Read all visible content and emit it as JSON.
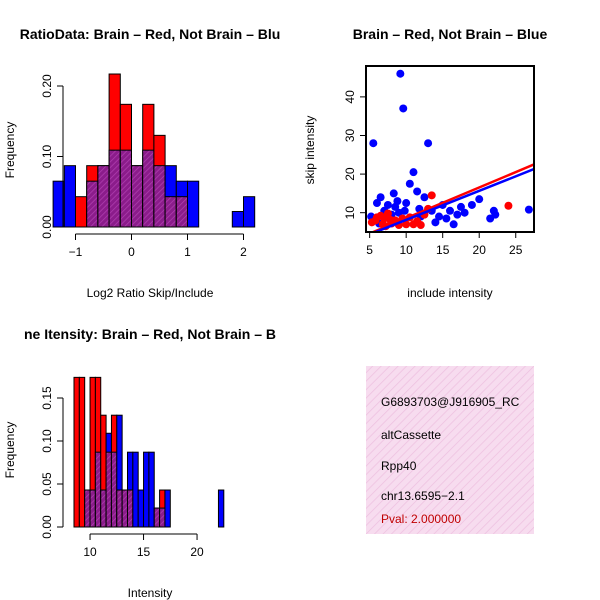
{
  "colors": {
    "red": "#ff0000",
    "blue": "#0000ff",
    "overlap": "#8b1c8b",
    "overlap_hatch": "#b03fb0",
    "info_bg": "#f7dcef",
    "info_hatch": "#eec0e0",
    "pval": "#c00000"
  },
  "chart_data": [
    {
      "id": "ratio-histogram",
      "type": "bar",
      "title": "RatioData: Brain – Red, Not Brain – Blu",
      "xlabel": "Log2 Ratio Skip/Include",
      "ylabel": "Frequency",
      "xlim": [
        -1.45,
        2.45
      ],
      "ylim": [
        0,
        0.22
      ],
      "xticks": [
        -1,
        0,
        1,
        2
      ],
      "xtick_labels": [
        "−1",
        "0",
        "1",
        "2"
      ],
      "yticks": [
        0.0,
        0.1,
        0.2
      ],
      "ytick_labels": [
        "0.00",
        "0.10",
        "0.20"
      ],
      "bin_edges": [
        -1.4,
        -1.2,
        -1.0,
        -0.8,
        -0.6,
        -0.4,
        -0.2,
        0.0,
        0.2,
        0.4,
        0.6,
        0.8,
        1.0,
        1.2,
        1.4,
        1.6,
        1.8,
        2.0,
        2.2
      ],
      "series": [
        {
          "name": "Brain",
          "color": "red",
          "values": [
            0,
            0,
            0.043,
            0.087,
            0.087,
            0.217,
            0.174,
            0.087,
            0.174,
            0.13,
            0.043,
            0.043,
            0,
            0,
            0,
            0,
            0,
            0
          ]
        },
        {
          "name": "Not Brain",
          "color": "blue",
          "values": [
            0.065,
            0.087,
            0,
            0.065,
            0.087,
            0.109,
            0.109,
            0.087,
            0.109,
            0.087,
            0.087,
            0.065,
            0.065,
            0,
            0,
            0,
            0.022,
            0.043
          ]
        }
      ]
    },
    {
      "id": "intensity-scatter",
      "type": "scatter",
      "title": "Brain – Red, Not Brain – Blue",
      "xlabel": "include intensity",
      "ylabel": "skip intensity",
      "xlim": [
        4.5,
        27.5
      ],
      "ylim": [
        5,
        48
      ],
      "xticks": [
        5,
        10,
        15,
        20,
        25
      ],
      "xtick_labels": [
        "5",
        "10",
        "15",
        "20",
        "25"
      ],
      "yticks": [
        10,
        20,
        30,
        40
      ],
      "ytick_labels": [
        "10",
        "20",
        "30",
        "40"
      ],
      "series": [
        {
          "name": "Brain",
          "color": "red",
          "points": [
            [
              5.3,
              7.5
            ],
            [
              5.8,
              8.0
            ],
            [
              6.0,
              8.8
            ],
            [
              6.5,
              9.2
            ],
            [
              6.8,
              7.0
            ],
            [
              7.0,
              8.5
            ],
            [
              7.2,
              6.5
            ],
            [
              7.5,
              9.8
            ],
            [
              7.8,
              8.2
            ],
            [
              8.0,
              7.2
            ],
            [
              8.5,
              8.0
            ],
            [
              8.8,
              7.5
            ],
            [
              9.0,
              6.8
            ],
            [
              9.5,
              8.5
            ],
            [
              10.0,
              7.0
            ],
            [
              10.5,
              8.8
            ],
            [
              11.0,
              7.0
            ],
            [
              11.5,
              7.8
            ],
            [
              12.0,
              6.8
            ],
            [
              12.5,
              9.5
            ],
            [
              13.0,
              11.0
            ],
            [
              13.5,
              14.5
            ],
            [
              24.0,
              11.8
            ]
          ]
        },
        {
          "name": "Not Brain",
          "color": "blue",
          "points": [
            [
              5.2,
              9.0
            ],
            [
              5.5,
              28.0
            ],
            [
              6.0,
              12.5
            ],
            [
              6.3,
              7.2
            ],
            [
              6.5,
              14.0
            ],
            [
              7.0,
              10.5
            ],
            [
              7.5,
              12.0
            ],
            [
              8.0,
              9.5
            ],
            [
              8.3,
              15.0
            ],
            [
              8.5,
              11.5
            ],
            [
              8.8,
              13.0
            ],
            [
              9.0,
              10.0
            ],
            [
              9.2,
              46.0
            ],
            [
              9.6,
              37.0
            ],
            [
              9.8,
              10.5
            ],
            [
              10.0,
              12.5
            ],
            [
              10.5,
              17.5
            ],
            [
              11.0,
              20.5
            ],
            [
              11.5,
              15.5
            ],
            [
              11.8,
              11.0
            ],
            [
              12.0,
              9.0
            ],
            [
              12.5,
              14.0
            ],
            [
              13.0,
              28.0
            ],
            [
              13.5,
              10.5
            ],
            [
              14.0,
              7.5
            ],
            [
              14.5,
              9.0
            ],
            [
              15.0,
              12.0
            ],
            [
              15.5,
              8.5
            ],
            [
              16.0,
              10.5
            ],
            [
              16.5,
              7.0
            ],
            [
              17.0,
              9.5
            ],
            [
              17.5,
              11.5
            ],
            [
              18.0,
              10.0
            ],
            [
              19.0,
              12.0
            ],
            [
              20.0,
              13.5
            ],
            [
              21.5,
              8.5
            ],
            [
              22.0,
              10.5
            ],
            [
              22.2,
              9.5
            ],
            [
              26.8,
              10.8
            ]
          ]
        }
      ],
      "fit_lines": [
        {
          "name": "Brain fit",
          "color": "red",
          "x": [
            4.5,
            27.5
          ],
          "y": [
            4.2,
            22.5
          ]
        },
        {
          "name": "Not Brain fit",
          "color": "blue",
          "x": [
            4.5,
            27.5
          ],
          "y": [
            4.0,
            21.3
          ]
        }
      ]
    },
    {
      "id": "intensity-histogram",
      "type": "bar",
      "title": "ne Itensity: Brain – Red, Not Brain – B",
      "xlabel": "Intensity",
      "ylabel": "Frequency",
      "xlim": [
        7.8,
        23.5
      ],
      "ylim": [
        0,
        0.175
      ],
      "xticks": [
        10,
        15,
        20
      ],
      "xtick_labels": [
        "10",
        "15",
        "20"
      ],
      "yticks": [
        0.0,
        0.05,
        0.1,
        0.15
      ],
      "ytick_labels": [
        "0.00",
        "0.05",
        "0.10",
        "0.15"
      ],
      "bin_edges": [
        8.5,
        9,
        9.5,
        10,
        10.5,
        11,
        11.5,
        12,
        12.5,
        13,
        13.5,
        14,
        14.5,
        15,
        15.5,
        16,
        16.5,
        17,
        17.5,
        18,
        18.5,
        19,
        19.5,
        20,
        20.5,
        21,
        21.5,
        22,
        22.5,
        23
      ],
      "series": [
        {
          "name": "Brain",
          "color": "red",
          "values": [
            0.174,
            0.174,
            0.043,
            0.174,
            0.174,
            0.13,
            0.087,
            0.13,
            0.043,
            0.043,
            0.043,
            0,
            0,
            0,
            0,
            0.022,
            0.043,
            0,
            0,
            0,
            0,
            0,
            0,
            0,
            0,
            0,
            0,
            0,
            0
          ]
        },
        {
          "name": "Not Brain",
          "color": "blue",
          "values": [
            0,
            0,
            0.043,
            0.043,
            0.087,
            0.043,
            0.109,
            0.087,
            0.13,
            0.043,
            0.087,
            0.087,
            0.043,
            0.087,
            0.087,
            0.022,
            0.022,
            0.043,
            0,
            0,
            0,
            0,
            0,
            0,
            0,
            0,
            0,
            0.043,
            0
          ]
        }
      ]
    }
  ],
  "info_box": {
    "event_id": "G6893703@J916905_RC",
    "event_type": "altCassette",
    "gene": "Rpp40",
    "location": "chr13.6595−2.1",
    "pval": "Pval: 2.000000"
  }
}
